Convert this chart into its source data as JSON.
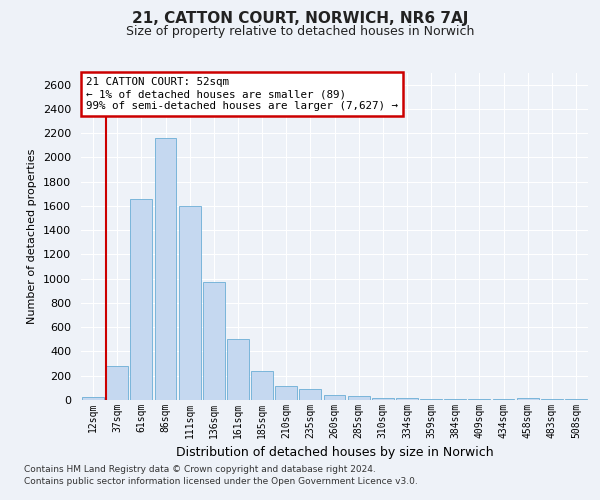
{
  "title1": "21, CATTON COURT, NORWICH, NR6 7AJ",
  "title2": "Size of property relative to detached houses in Norwich",
  "xlabel": "Distribution of detached houses by size in Norwich",
  "ylabel": "Number of detached properties",
  "categories": [
    "12sqm",
    "37sqm",
    "61sqm",
    "86sqm",
    "111sqm",
    "136sqm",
    "161sqm",
    "185sqm",
    "210sqm",
    "235sqm",
    "260sqm",
    "285sqm",
    "310sqm",
    "334sqm",
    "359sqm",
    "384sqm",
    "409sqm",
    "434sqm",
    "458sqm",
    "483sqm",
    "508sqm"
  ],
  "values": [
    25,
    280,
    1660,
    2160,
    1600,
    970,
    500,
    235,
    115,
    90,
    40,
    30,
    20,
    20,
    10,
    10,
    5,
    5,
    15,
    5,
    5
  ],
  "bar_color": "#c5d8f0",
  "bar_edge_color": "#6baed6",
  "vline_x": 1.5,
  "vline_color": "#cc0000",
  "annotation_line1": "21 CATTON COURT: 52sqm",
  "annotation_line2": "← 1% of detached houses are smaller (89)",
  "annotation_line3": "99% of semi-detached houses are larger (7,627) →",
  "annotation_box_color": "#ffffff",
  "annotation_box_edge": "#cc0000",
  "ylim": [
    0,
    2700
  ],
  "yticks": [
    0,
    200,
    400,
    600,
    800,
    1000,
    1200,
    1400,
    1600,
    1800,
    2000,
    2200,
    2400,
    2600
  ],
  "footer1": "Contains HM Land Registry data © Crown copyright and database right 2024.",
  "footer2": "Contains public sector information licensed under the Open Government Licence v3.0.",
  "bg_color": "#eef2f8",
  "plot_bg_color": "#eef2f8",
  "grid_color": "#ffffff"
}
